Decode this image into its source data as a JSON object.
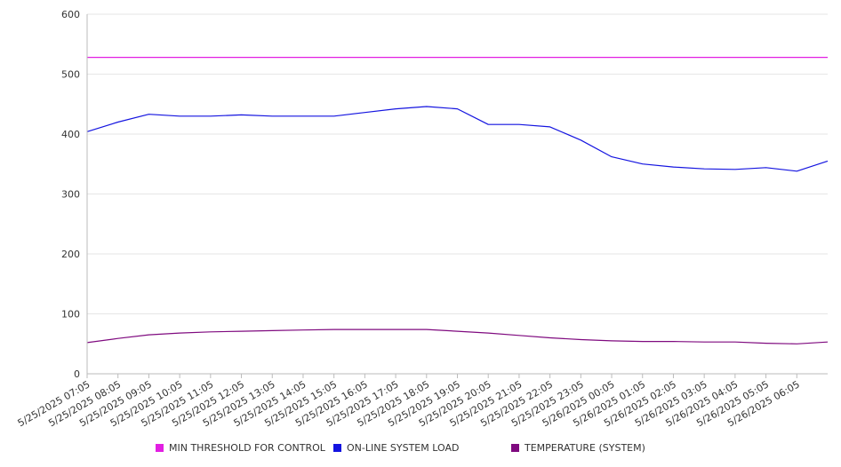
{
  "colors": {
    "threshold": "#e21fe2",
    "load": "#1414e0",
    "temperature": "#7f0a7f",
    "grid": "#e6e6e6",
    "axis": "#bbbbbb",
    "text": "#333333"
  },
  "chart_data": {
    "type": "line",
    "grid": "horizontal",
    "legend_position": "bottom",
    "ylim": [
      0,
      600
    ],
    "y_ticks": [
      "0",
      "100",
      "200",
      "300",
      "400",
      "500",
      "600"
    ],
    "x_tick_labels": [
      "5/25/2025 07:05",
      "5/25/2025 08:05",
      "5/25/2025 09:05",
      "5/25/2025 10:05",
      "5/25/2025 11:05",
      "5/25/2025 12:05",
      "5/25/2025 13:05",
      "5/25/2025 14:05",
      "5/25/2025 15:05",
      "5/25/2025 16:05",
      "5/25/2025 17:05",
      "5/25/2025 18:05",
      "5/25/2025 19:05",
      "5/25/2025 20:05",
      "5/25/2025 21:05",
      "5/25/2025 22:05",
      "5/25/2025 23:05",
      "5/26/2025 00:05",
      "5/26/2025 01:05",
      "5/26/2025 02:05",
      "5/26/2025 03:05",
      "5/26/2025 04:05",
      "5/26/2025 05:05",
      "5/26/2025 06:05"
    ],
    "x": [
      "5/25/2025 07:05",
      "5/25/2025 08:05",
      "5/25/2025 09:05",
      "5/25/2025 10:05",
      "5/25/2025 11:05",
      "5/25/2025 12:05",
      "5/25/2025 13:05",
      "5/25/2025 14:05",
      "5/25/2025 15:05",
      "5/25/2025 16:05",
      "5/25/2025 17:05",
      "5/25/2025 18:05",
      "5/25/2025 19:05",
      "5/25/2025 20:05",
      "5/25/2025 21:05",
      "5/25/2025 22:05",
      "5/25/2025 23:05",
      "5/26/2025 00:05",
      "5/26/2025 01:05",
      "5/26/2025 02:05",
      "5/26/2025 03:05",
      "5/26/2025 04:05",
      "5/26/2025 05:05",
      "5/26/2025 06:05",
      "5/26/2025 07:05"
    ],
    "series": [
      {
        "name": "MIN THRESHOLD FOR CONTROL",
        "color": "#e21fe2",
        "values": [
          528,
          528,
          528,
          528,
          528,
          528,
          528,
          528,
          528,
          528,
          528,
          528,
          528,
          528,
          528,
          528,
          528,
          528,
          528,
          528,
          528,
          528,
          528,
          528,
          528
        ]
      },
      {
        "name": "ON-LINE SYSTEM LOAD",
        "color": "#1414e0",
        "values": [
          404,
          420,
          433,
          430,
          430,
          432,
          430,
          430,
          430,
          436,
          442,
          446,
          442,
          416,
          416,
          412,
          390,
          362,
          350,
          345,
          342,
          341,
          344,
          338,
          355
        ]
      },
      {
        "name": "TEMPERATURE (SYSTEM)",
        "color": "#7f0a7f",
        "values": [
          52,
          59,
          65,
          68,
          70,
          71,
          72,
          73,
          74,
          74,
          74,
          74,
          71,
          68,
          64,
          60,
          57,
          55,
          54,
          54,
          53,
          53,
          51,
          50,
          53
        ]
      }
    ]
  }
}
